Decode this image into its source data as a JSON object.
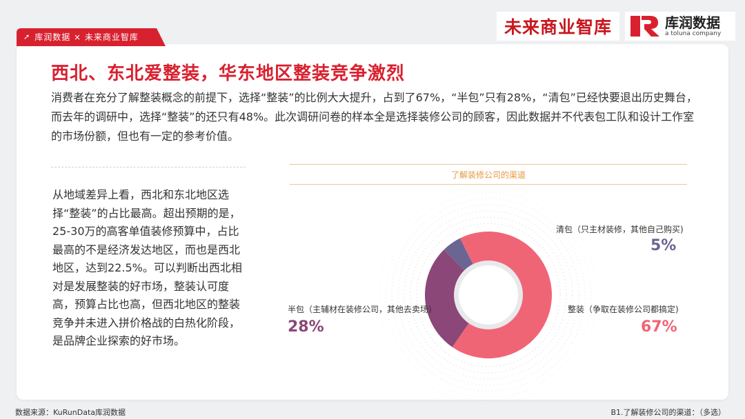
{
  "header": {
    "tag_text": "库润数据 × 未来商业智库",
    "logo_left": "未来商业智库",
    "logo_right_cn": "库润数据",
    "logo_right_en": "a toluna company"
  },
  "title": "西北、东北爱整装，华东地区整装竞争激烈",
  "intro": "消费者在充分了解整装概念的前提下，选择“整装”的比例大大提升，占到了67%，“半包”只有28%，“清包”已经快要退出历史舞台，而去年的调研中，选择“整装”的还只有48%。此次调研问卷的样本全是选择装修公司的顾客，因此数据并不代表包工队和设计工作室的市场份额，但也有一定的参考价值。",
  "side_text": "从地域差异上看，西北和东北地区选择“整装”的占比最高。超出预期的是，25-30万的高客单值装修预算中，占比最高的不是经济发达地区，而也是西北地区，达到22.5%。可以判断出西北相对是发展整装的好市场，整装认可度高，预算占比也高，但西北地区的整装竞争并未进入拼价格战的白热化阶段，是品牌企业探索的好市场。",
  "chart_data": {
    "type": "pie",
    "title": "了解装修公司的渠道",
    "slices": [
      {
        "label": "整装（争取在装修公司都搞定)",
        "value": 67,
        "value_label": "67%",
        "color": "#f06576"
      },
      {
        "label": "半包（主辅材在装修公司，其他去卖场)",
        "value": 28,
        "value_label": "28%",
        "color": "#8a4778"
      },
      {
        "label": "清包（只主材装修，其他自己购买)",
        "value": 5,
        "value_label": "5%",
        "color": "#6b6593"
      }
    ]
  },
  "footer": {
    "source": "数据来源：KuRunData库润数据",
    "question": "B1.了解装修公司的渠道：（多选）"
  }
}
